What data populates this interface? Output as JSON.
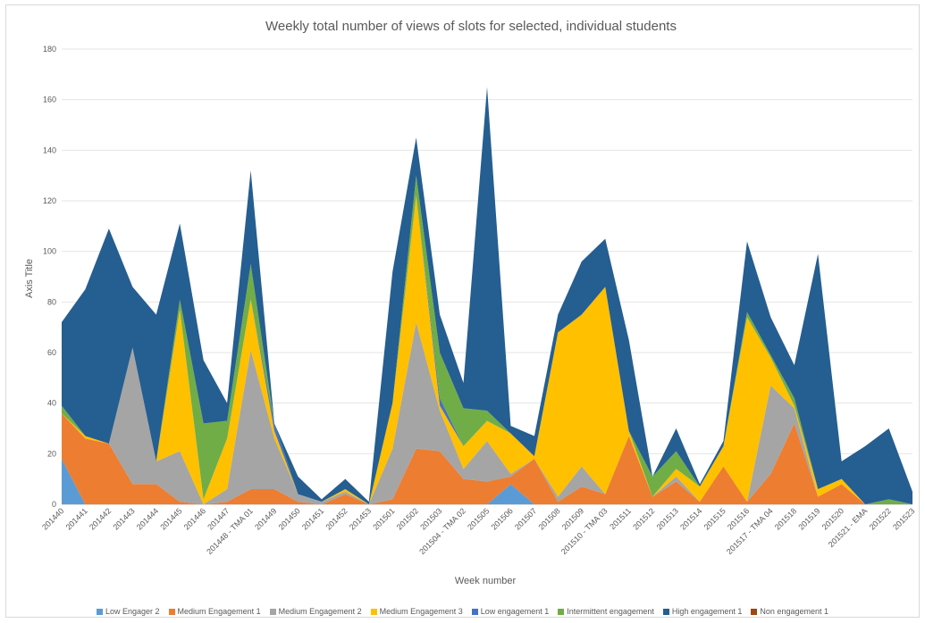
{
  "chart_data": {
    "type": "area",
    "stacked": true,
    "title": "Weekly total number of views of slots for selected, individual students",
    "xlabel": "Week number",
    "ylabel": "Axis Title",
    "ylim": [
      0,
      180
    ],
    "yticks": [
      0,
      20,
      40,
      60,
      80,
      100,
      120,
      140,
      160,
      180
    ],
    "grid": true,
    "legend_position": "bottom",
    "categories": [
      "201440",
      "201441",
      "201442",
      "201443",
      "201444",
      "201445",
      "201446",
      "201447",
      "201448 - TMA 01",
      "201449",
      "201450",
      "201451",
      "201452",
      "201453",
      "201501",
      "201502",
      "201503",
      "201504 - TMA 02",
      "201505",
      "201506",
      "201507",
      "201508",
      "201509",
      "201510 - TMA 03",
      "201511",
      "201512",
      "201513",
      "201514",
      "201515",
      "201516",
      "201517 - TMA 04",
      "201518",
      "201519",
      "201520",
      "201521 - EMA",
      "201522",
      "201523"
    ],
    "series": [
      {
        "name": "Low Engager 2",
        "color": "#5b9bd5",
        "values": [
          18,
          0,
          0,
          0,
          0,
          0,
          0,
          0,
          0,
          0,
          0,
          0,
          0,
          0,
          0,
          0,
          0,
          0,
          0,
          8,
          0,
          0,
          0,
          0,
          0,
          0,
          0,
          0,
          0,
          0,
          0,
          0,
          0,
          0,
          0,
          0,
          0
        ]
      },
      {
        "name": "Medium Engagement 1",
        "color": "#ed7d31",
        "values": [
          18,
          26,
          24,
          8,
          8,
          1,
          0,
          1,
          6,
          6,
          1,
          0,
          4,
          0,
          2,
          22,
          21,
          10,
          9,
          3,
          18,
          1,
          7,
          4,
          27,
          3,
          9,
          1,
          15,
          1,
          12,
          32,
          3,
          8,
          0,
          0,
          0
        ]
      },
      {
        "name": "Medium Engagement 2",
        "color": "#a5a5a5",
        "values": [
          0,
          0,
          0,
          54,
          9,
          20,
          0,
          5,
          55,
          20,
          3,
          1,
          1,
          0,
          20,
          50,
          16,
          4,
          16,
          1,
          0,
          2,
          8,
          0,
          0,
          0,
          2,
          0,
          0,
          0,
          35,
          6,
          0,
          0,
          0,
          0,
          0
        ]
      },
      {
        "name": "Medium Engagement 3",
        "color": "#ffc000",
        "values": [
          0,
          1,
          0,
          0,
          0,
          56,
          2,
          20,
          20,
          3,
          0,
          0,
          1,
          0,
          18,
          50,
          2,
          9,
          8,
          16,
          1,
          65,
          60,
          82,
          2,
          0,
          3,
          6,
          8,
          73,
          11,
          1,
          3,
          2,
          0,
          0,
          0
        ]
      },
      {
        "name": "Low engagement 1",
        "color": "#4472c4",
        "values": [
          0,
          0,
          0,
          0,
          0,
          0,
          0,
          0,
          0,
          3,
          0,
          0,
          0,
          0,
          0,
          0,
          3,
          0,
          0,
          0,
          0,
          0,
          0,
          0,
          0,
          0,
          0,
          0,
          0,
          0,
          0,
          0,
          0,
          0,
          0,
          0,
          0
        ]
      },
      {
        "name": "Intermittent engagement",
        "color": "#70ad47",
        "values": [
          3,
          0,
          0,
          0,
          0,
          4,
          30,
          7,
          14,
          0,
          0,
          0,
          0,
          0,
          0,
          8,
          18,
          15,
          4,
          0,
          0,
          0,
          0,
          0,
          0,
          8,
          7,
          0,
          0,
          2,
          1,
          3,
          0,
          0,
          0,
          2,
          0
        ]
      },
      {
        "name": "High engagement 1",
        "color": "#255e91",
        "values": [
          33,
          58,
          85,
          24,
          58,
          30,
          25,
          7,
          37,
          0,
          7,
          1,
          4,
          1,
          52,
          15,
          15,
          10,
          128,
          3,
          8,
          7,
          21,
          19,
          36,
          0,
          9,
          1,
          2,
          28,
          15,
          13,
          93,
          7,
          23,
          28,
          5
        ]
      },
      {
        "name": "Non engagement 1",
        "color": "#9e480e",
        "values": [
          0,
          0,
          0,
          0,
          0,
          0,
          0,
          0,
          0,
          0,
          0,
          0,
          0,
          0,
          0,
          0,
          0,
          0,
          0,
          0,
          0,
          0,
          0,
          0,
          0,
          0,
          0,
          0,
          0,
          0,
          0,
          0,
          0,
          0,
          0,
          0,
          0
        ]
      }
    ]
  }
}
